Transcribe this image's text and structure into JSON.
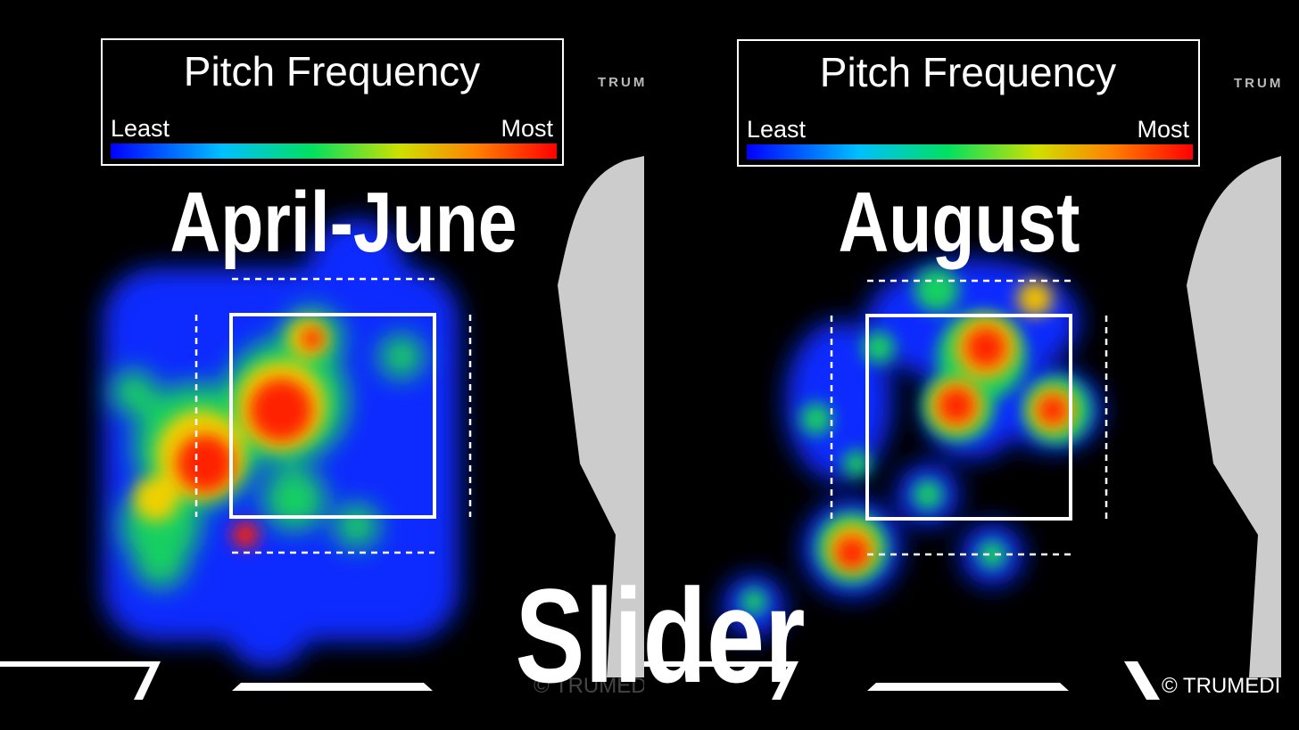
{
  "panels": [
    {
      "legend": {
        "title": "Pitch Frequency",
        "least": "Least",
        "most": "Most"
      },
      "period": "April-June",
      "logo": "TRUM",
      "copyright": "© TRUMEDI"
    },
    {
      "legend": {
        "title": "Pitch Frequency",
        "least": "Least",
        "most": "Most"
      },
      "period": "August",
      "logo": "TRUM",
      "copyright": "© TRUMEDI"
    }
  ],
  "pitch_type": "Slider"
}
